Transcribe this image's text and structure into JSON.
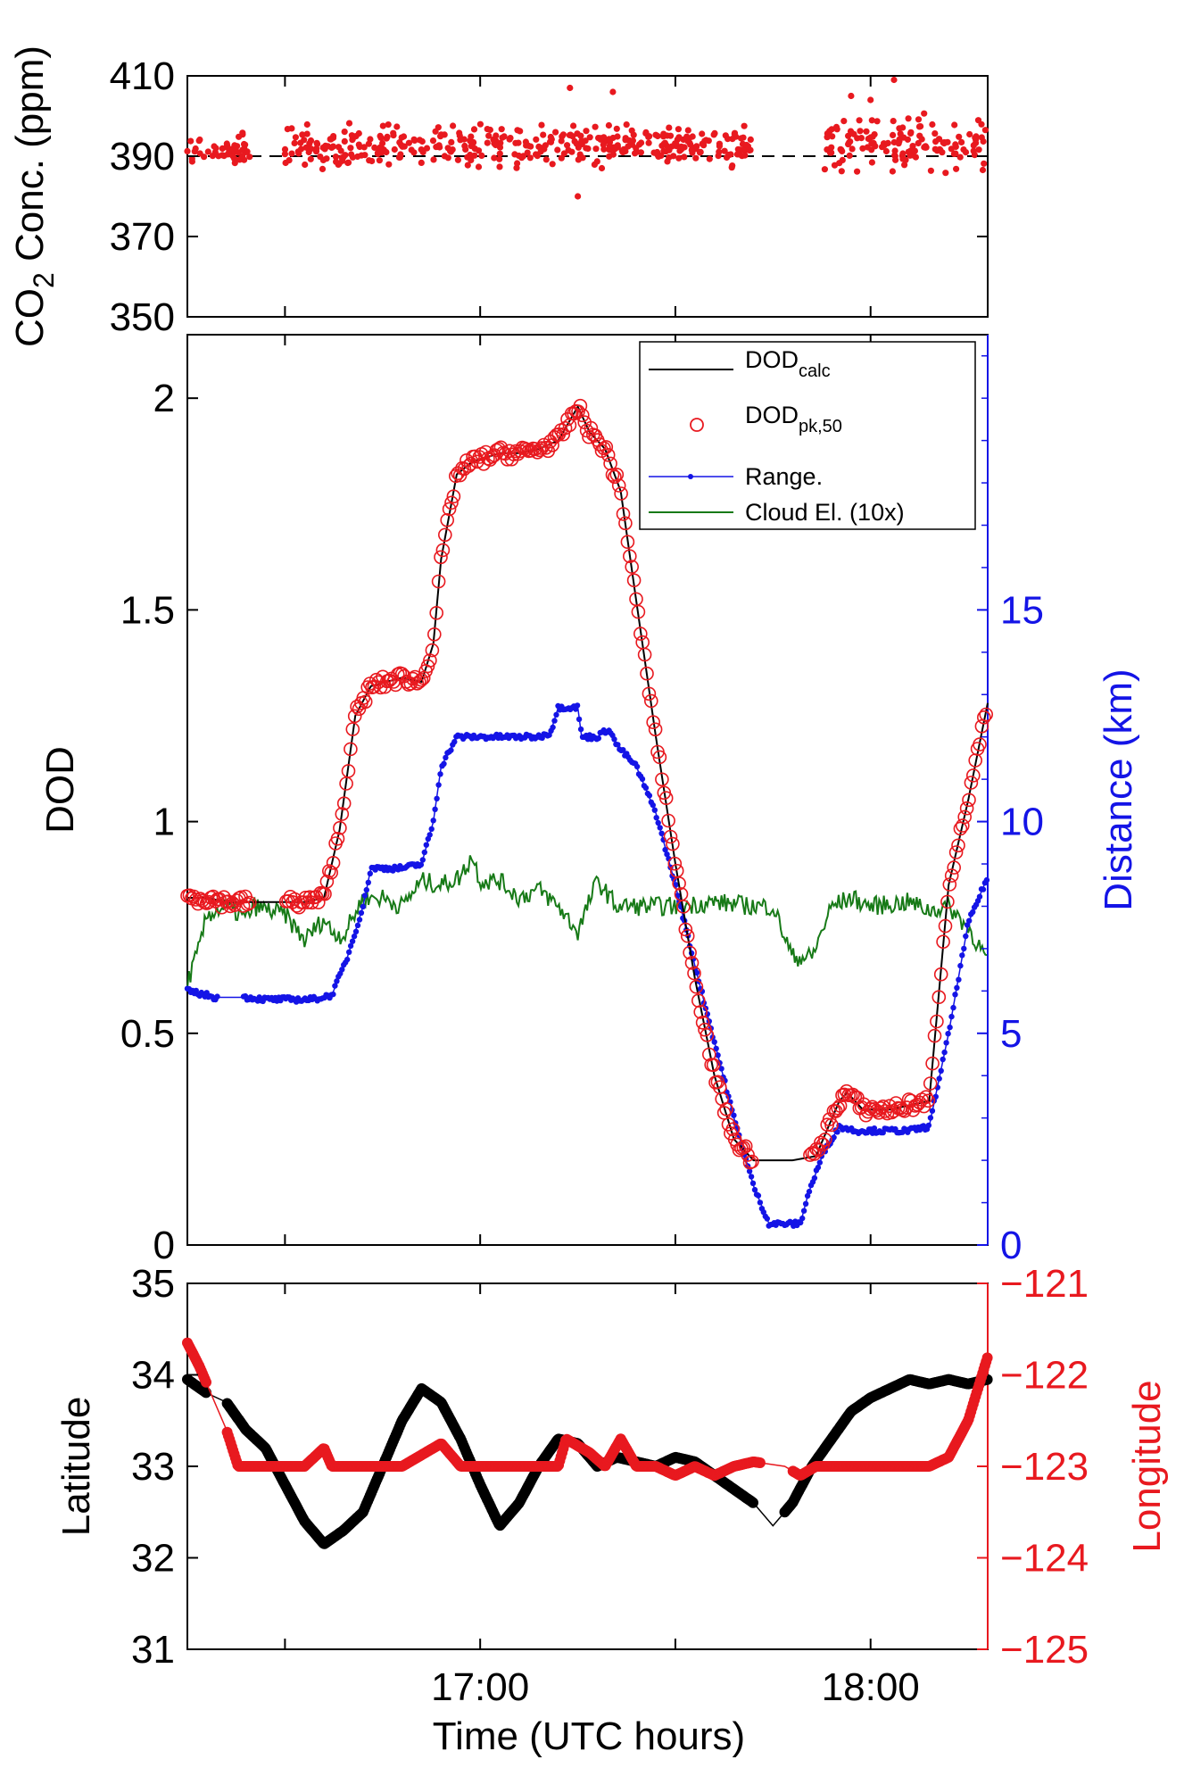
{
  "chart_data": [
    {
      "id": "co2",
      "type": "scatter",
      "ylabel": "CO",
      "ylabel_sub": "2",
      "ylabel_rest": " Conc. (ppm)",
      "ylim": [
        350,
        410
      ],
      "yticks": [
        "350",
        "370",
        "390",
        "410"
      ],
      "xlim": [
        16.25,
        18.3
      ],
      "reference_line": {
        "y": 390,
        "style": "dashed",
        "color": "#000000"
      },
      "series": [
        {
          "name": "CO2 concentration",
          "color": "#e8191f",
          "segments": [
            {
              "x": [
                16.25,
                16.41
              ],
              "mean": 391.5,
              "spread": 3
            },
            {
              "x": [
                16.5,
                17.7
              ],
              "mean": 392.5,
              "spread": 4
            },
            {
              "x": [
                17.88,
                18.3
              ],
              "mean": 393,
              "spread": 6
            }
          ],
          "outliers": [
            [
              17.23,
              407
            ],
            [
              17.34,
              406
            ],
            [
              17.25,
              380
            ],
            [
              18.06,
              409
            ],
            [
              17.95,
              405
            ],
            [
              18.0,
              404
            ]
          ]
        }
      ]
    },
    {
      "id": "dod",
      "type": "line",
      "ylabel": "DOD",
      "ylim": [
        0,
        2.15
      ],
      "yticks": [
        "0",
        "0.5",
        "1",
        "1.5",
        "2"
      ],
      "xlim": [
        16.25,
        18.3
      ],
      "y2label": "Distance (km)",
      "y2lim": [
        0,
        21.5
      ],
      "y2ticks": [
        "0",
        "5",
        "10",
        "15"
      ],
      "legend": {
        "position": "top-right",
        "entries": [
          {
            "label": "DOD",
            "sub": "calc",
            "style": "line",
            "color": "#000000"
          },
          {
            "label": "DOD",
            "sub": "pk,50",
            "style": "circle",
            "color": "#e8191f"
          },
          {
            "label": "Range.",
            "sub": "",
            "style": "line-dot",
            "color": "#1414e6"
          },
          {
            "label": "Cloud El. (10x)",
            "sub": "",
            "style": "line",
            "color": "#177a17"
          }
        ]
      },
      "series": [
        {
          "name": "DODcalc",
          "color": "#000000",
          "x": [
            16.25,
            16.3,
            16.35,
            16.4,
            16.45,
            16.5,
            16.55,
            16.6,
            16.64,
            16.68,
            16.72,
            16.76,
            16.8,
            16.85,
            16.88,
            16.9,
            16.94,
            16.98,
            17.05,
            17.1,
            17.15,
            17.2,
            17.25,
            17.28,
            17.32,
            17.36,
            17.4,
            17.45,
            17.5,
            17.55,
            17.6,
            17.65,
            17.7,
            17.8,
            17.86,
            17.92,
            17.94,
            17.98,
            18.05,
            18.1,
            18.15,
            18.2,
            18.25,
            18.3
          ],
          "y": [
            0.82,
            0.82,
            0.81,
            0.81,
            0.81,
            0.81,
            0.81,
            0.82,
            0.98,
            1.25,
            1.32,
            1.33,
            1.34,
            1.33,
            1.42,
            1.62,
            1.82,
            1.85,
            1.87,
            1.87,
            1.88,
            1.9,
            1.98,
            1.92,
            1.88,
            1.78,
            1.52,
            1.2,
            0.9,
            0.63,
            0.4,
            0.25,
            0.2,
            0.2,
            0.21,
            0.34,
            0.36,
            0.32,
            0.32,
            0.33,
            0.34,
            0.85,
            1.05,
            1.28
          ]
        },
        {
          "name": "DODpk,50",
          "color": "#e8191f",
          "x": [
            16.25,
            16.3,
            16.35,
            16.4,
            16.45,
            16.5,
            16.55,
            16.6,
            16.64,
            16.68,
            16.72,
            16.76,
            16.8,
            16.85,
            16.88,
            16.9,
            16.94,
            16.98,
            17.05,
            17.1,
            17.15,
            17.2,
            17.25,
            17.28,
            17.32,
            17.36,
            17.4,
            17.45,
            17.5,
            17.55,
            17.6,
            17.65,
            17.7,
            17.8,
            17.86,
            17.92,
            17.94,
            17.98,
            18.05,
            18.1,
            18.15,
            18.2,
            18.25,
            18.3
          ],
          "y": [
            0.82,
            0.82,
            0.81,
            0.81,
            0.81,
            0.81,
            0.81,
            0.82,
            0.98,
            1.25,
            1.32,
            1.33,
            1.34,
            1.33,
            1.42,
            1.62,
            1.82,
            1.85,
            1.87,
            1.87,
            1.88,
            1.9,
            1.98,
            1.92,
            1.88,
            1.78,
            1.52,
            1.2,
            0.9,
            0.63,
            0.4,
            0.25,
            0.2,
            0.2,
            0.21,
            0.34,
            0.36,
            0.32,
            0.32,
            0.33,
            0.34,
            0.85,
            1.05,
            1.28
          ]
        },
        {
          "name": "Range (km)",
          "axis": "right",
          "color": "#1414e6",
          "x": [
            16.25,
            16.3,
            16.32,
            16.4,
            16.45,
            16.5,
            16.57,
            16.62,
            16.66,
            16.7,
            16.72,
            16.8,
            16.85,
            16.88,
            16.9,
            16.94,
            16.96,
            17.0,
            17.05,
            17.1,
            17.15,
            17.18,
            17.2,
            17.25,
            17.26,
            17.3,
            17.33,
            17.35,
            17.4,
            17.45,
            17.5,
            17.55,
            17.6,
            17.65,
            17.7,
            17.74,
            17.78,
            17.82,
            17.84,
            17.88,
            17.92,
            17.96,
            18.0,
            18.05,
            18.1,
            18.15,
            18.2,
            18.25,
            18.3
          ],
          "y": [
            6.0,
            5.9,
            5.85,
            5.85,
            5.8,
            5.8,
            5.8,
            5.9,
            6.8,
            8.0,
            8.9,
            8.9,
            9.0,
            10.0,
            11.3,
            12.0,
            12.0,
            12.0,
            12.0,
            12.0,
            12.0,
            12.1,
            12.7,
            12.7,
            12.0,
            12.0,
            12.2,
            11.8,
            11.3,
            10.2,
            8.5,
            6.6,
            4.8,
            3.0,
            1.4,
            0.5,
            0.5,
            0.5,
            1.2,
            2.2,
            2.8,
            2.7,
            2.7,
            2.7,
            2.7,
            2.8,
            5.0,
            7.6,
            8.7
          ]
        },
        {
          "name": "Cloud El. (10x)",
          "color": "#177a17",
          "x": [
            16.25,
            16.28,
            16.3,
            16.35,
            16.4,
            16.42,
            16.5,
            16.55,
            16.6,
            16.62,
            16.65,
            16.7,
            16.75,
            16.8,
            16.85,
            16.9,
            16.95,
            16.98,
            17.0,
            17.05,
            17.1,
            17.15,
            17.2,
            17.25,
            17.3,
            17.35,
            17.4,
            17.5,
            17.6,
            17.7,
            17.75,
            17.8,
            17.85,
            17.9,
            17.95,
            18.0,
            18.1,
            18.15,
            18.2,
            18.25,
            18.3
          ],
          "y": [
            0.62,
            0.7,
            0.78,
            0.8,
            0.77,
            0.8,
            0.78,
            0.72,
            0.77,
            0.74,
            0.73,
            0.82,
            0.82,
            0.8,
            0.86,
            0.85,
            0.87,
            0.92,
            0.86,
            0.86,
            0.82,
            0.84,
            0.8,
            0.74,
            0.86,
            0.8,
            0.8,
            0.8,
            0.81,
            0.8,
            0.8,
            0.68,
            0.68,
            0.8,
            0.82,
            0.8,
            0.81,
            0.79,
            0.8,
            0.75,
            0.67
          ]
        }
      ]
    },
    {
      "id": "position",
      "type": "line",
      "ylabel": "Latitude",
      "ylim": [
        31,
        35
      ],
      "yticks": [
        "31",
        "32",
        "33",
        "34",
        "35"
      ],
      "xlim": [
        16.25,
        18.3
      ],
      "xticks": [
        {
          "value": 17.0,
          "label": "17:00"
        },
        {
          "value": 18.0,
          "label": "18:00"
        }
      ],
      "xtick_marks": [
        16.5,
        17.0,
        17.5,
        18.0
      ],
      "xlabel": "Time (UTC hours)",
      "y2label": "Longitude",
      "y2lim": [
        -125,
        -121
      ],
      "y2ticks": [
        "−125",
        "−124",
        "−123",
        "−122",
        "−121"
      ],
      "series": [
        {
          "name": "Latitude",
          "color": "#000000",
          "x": [
            16.25,
            16.3,
            16.35,
            16.4,
            16.45,
            16.5,
            16.55,
            16.6,
            16.65,
            16.7,
            16.75,
            16.8,
            16.85,
            16.9,
            16.95,
            17.0,
            17.05,
            17.1,
            17.15,
            17.2,
            17.25,
            17.3,
            17.35,
            17.4,
            17.45,
            17.5,
            17.55,
            17.6,
            17.65,
            17.7,
            17.75,
            17.8,
            17.85,
            17.9,
            17.95,
            18.0,
            18.05,
            18.1,
            18.15,
            18.2,
            18.25,
            18.3
          ],
          "y": [
            33.95,
            33.8,
            33.7,
            33.4,
            33.2,
            32.8,
            32.4,
            32.15,
            32.3,
            32.5,
            33.0,
            33.5,
            33.85,
            33.7,
            33.3,
            32.8,
            32.35,
            32.6,
            33.0,
            33.3,
            33.25,
            33.0,
            33.1,
            33.05,
            33.0,
            33.1,
            33.05,
            32.9,
            32.75,
            32.6,
            32.35,
            32.6,
            33.0,
            33.3,
            33.6,
            33.75,
            33.85,
            33.95,
            33.9,
            33.95,
            33.9,
            33.95
          ],
          "thin": [
            [
              16.3,
              16.35
            ],
            [
              17.7,
              17.78
            ]
          ]
        },
        {
          "name": "Longitude",
          "axis": "right",
          "color": "#e8191f",
          "x": [
            16.25,
            16.28,
            16.32,
            16.35,
            16.38,
            16.45,
            16.5,
            16.55,
            16.6,
            16.62,
            16.65,
            16.7,
            16.8,
            16.9,
            16.95,
            16.98,
            17.05,
            17.1,
            17.15,
            17.2,
            17.22,
            17.28,
            17.32,
            17.36,
            17.4,
            17.45,
            17.5,
            17.55,
            17.6,
            17.65,
            17.7,
            17.78,
            17.82,
            17.86,
            17.9,
            18.0,
            18.1,
            18.15,
            18.2,
            18.25,
            18.3
          ],
          "y": [
            -121.65,
            -121.9,
            -122.3,
            -122.6,
            -123.0,
            -123.0,
            -123.0,
            -123.0,
            -122.8,
            -123.0,
            -123.0,
            -123.0,
            -123.0,
            -122.75,
            -123.0,
            -123.0,
            -123.0,
            -123.0,
            -123.0,
            -123.0,
            -122.7,
            -122.85,
            -123.0,
            -122.7,
            -123.0,
            -123.0,
            -123.1,
            -123.0,
            -123.1,
            -123.0,
            -122.95,
            -123.0,
            -123.1,
            -123.0,
            -123.0,
            -123.0,
            -123.0,
            -123.0,
            -122.9,
            -122.5,
            -121.8
          ]
        }
      ]
    }
  ]
}
